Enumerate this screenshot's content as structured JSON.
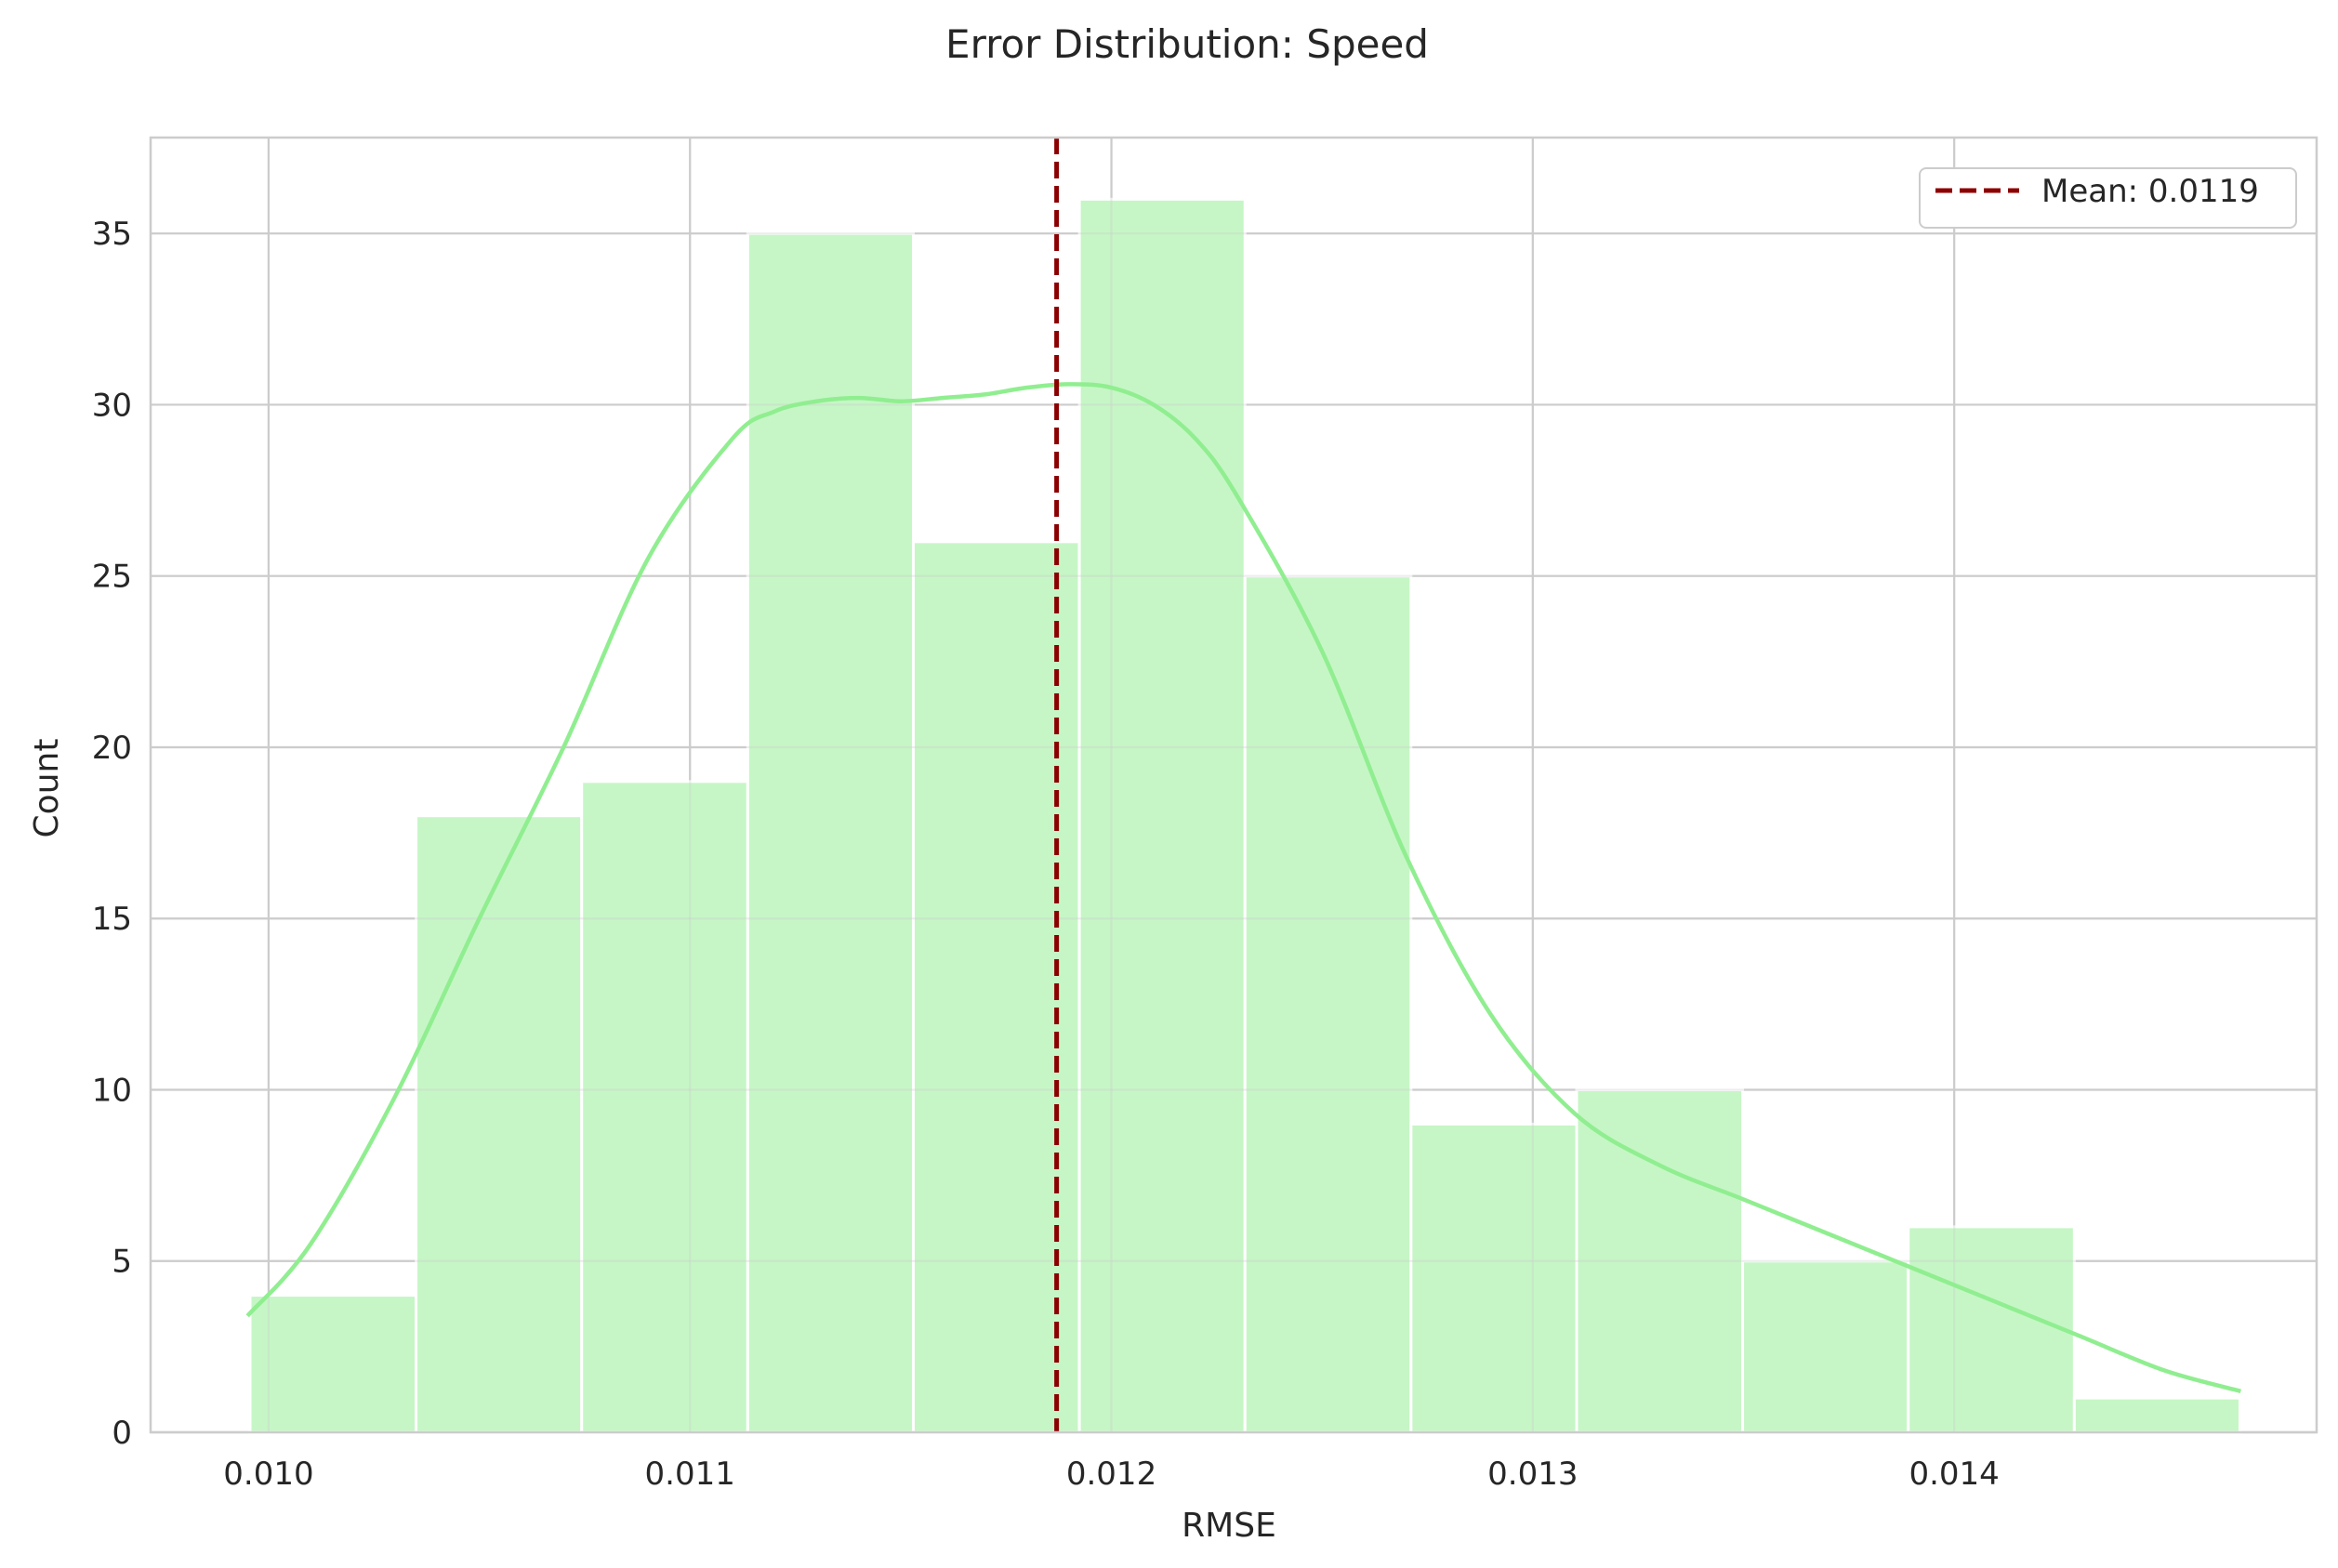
{
  "chart_data": {
    "type": "bar",
    "title": "Error Distribution: Speed",
    "xlabel": "RMSE",
    "ylabel": "Count",
    "xlim": [
      0.00972,
      0.01486
    ],
    "ylim": [
      0,
      37.8
    ],
    "xticks": [
      0.01,
      0.011,
      0.012,
      0.013,
      0.014
    ],
    "xtick_labels": [
      "0.010",
      "0.011",
      "0.012",
      "0.013",
      "0.014"
    ],
    "yticks": [
      0,
      5,
      10,
      15,
      20,
      25,
      30,
      35
    ],
    "ytick_labels": [
      "0",
      "5",
      "10",
      "15",
      "20",
      "25",
      "30",
      "35"
    ],
    "grid": true,
    "bin_edges": [
      0.009956,
      0.01035,
      0.010743,
      0.011137,
      0.01153,
      0.011924,
      0.012317,
      0.012711,
      0.013104,
      0.013498,
      0.013891,
      0.014285,
      0.014678
    ],
    "counts": [
      4,
      18,
      19,
      35,
      26,
      36,
      25,
      9,
      10,
      5,
      6,
      1
    ],
    "kde": {
      "x": [
        0.00995,
        0.0101,
        0.0103,
        0.0105,
        0.0107,
        0.0109,
        0.0111,
        0.0112,
        0.0113,
        0.0114,
        0.0115,
        0.0116,
        0.0117,
        0.0118,
        0.0119,
        0.012,
        0.0121,
        0.0122,
        0.0123,
        0.0125,
        0.0127,
        0.0129,
        0.0131,
        0.0133,
        0.0135,
        0.0137,
        0.0139,
        0.0141,
        0.0143,
        0.0145,
        0.01468
      ],
      "y": [
        3.4,
        5.5,
        9.8,
        15.0,
        20.0,
        25.5,
        29.0,
        29.8,
        30.1,
        30.2,
        30.1,
        30.2,
        30.3,
        30.5,
        30.6,
        30.5,
        30.0,
        29.0,
        27.3,
        22.8,
        16.8,
        12.2,
        9.3,
        7.8,
        6.8,
        5.8,
        4.8,
        3.8,
        2.8,
        1.8,
        1.2
      ]
    },
    "mean_line": {
      "x": 0.01187,
      "label": "Mean: 0.0119"
    },
    "legend": {
      "position": "top-right",
      "entries": [
        "Mean: 0.0119"
      ]
    },
    "colors": {
      "bar_fill": "#c6f6c6",
      "bar_edge": "#ffffff",
      "kde_line": "#90ee90",
      "mean_line": "#8b0000",
      "grid": "#cccccc",
      "spine": "#cccccc",
      "text": "#262626"
    }
  }
}
